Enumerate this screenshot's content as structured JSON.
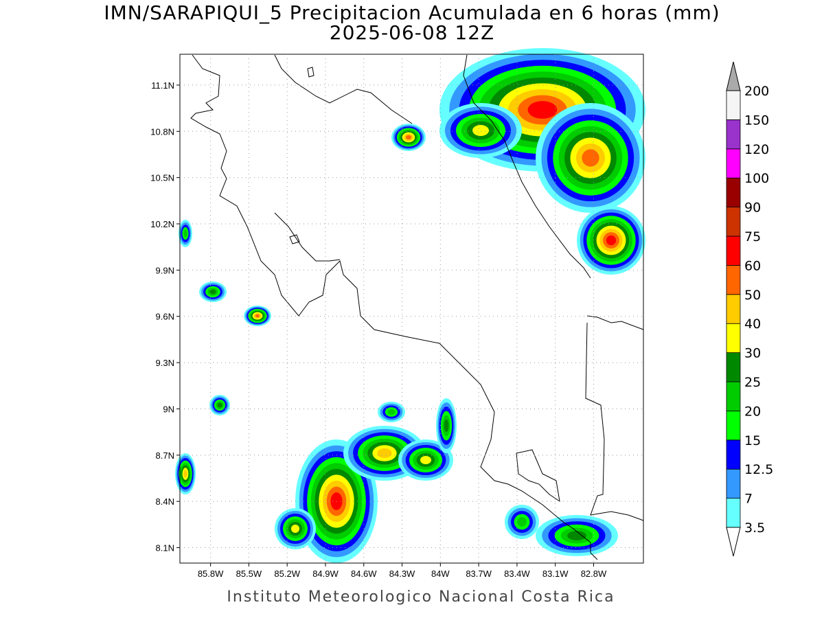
{
  "title": [
    "IMN/SARAPIQUI_5 Precipitacion Acumulada en 6 horas (mm)",
    "2025-06-08 12Z"
  ],
  "map": {
    "xlim": [
      -86.04,
      -82.41
    ],
    "ylim": [
      8.0,
      11.3
    ],
    "grid": true,
    "xticks": [
      {
        "value": -85.8,
        "label": "85.8W"
      },
      {
        "value": -85.5,
        "label": "85.5W"
      },
      {
        "value": -85.2,
        "label": "85.2W"
      },
      {
        "value": -84.9,
        "label": "84.9W"
      },
      {
        "value": -84.6,
        "label": "84.6W"
      },
      {
        "value": -84.3,
        "label": "84.3W"
      },
      {
        "value": -84.0,
        "label": "84W"
      },
      {
        "value": -83.7,
        "label": "83.7W"
      },
      {
        "value": -83.4,
        "label": "83.4W"
      },
      {
        "value": -83.1,
        "label": "83.1W"
      },
      {
        "value": -82.8,
        "label": "82.8W"
      }
    ],
    "yticks": [
      {
        "value": 8.1,
        "label": "8.1N"
      },
      {
        "value": 8.4,
        "label": "8.4N"
      },
      {
        "value": 8.7,
        "label": "8.7N"
      },
      {
        "value": 9.0,
        "label": "9N"
      },
      {
        "value": 9.3,
        "label": "9.3N"
      },
      {
        "value": 9.6,
        "label": "9.6N"
      },
      {
        "value": 9.9,
        "label": "9.9N"
      },
      {
        "value": 10.2,
        "label": "10.2N"
      },
      {
        "value": 10.5,
        "label": "10.5N"
      },
      {
        "value": 10.8,
        "label": "10.8N"
      },
      {
        "value": 11.1,
        "label": "11.1N"
      }
    ]
  },
  "colorbar": {
    "levels": [
      3.5,
      7,
      12.5,
      15,
      20,
      25,
      30,
      40,
      50,
      60,
      75,
      90,
      100,
      120,
      150,
      200
    ],
    "colors": [
      "#66ffff",
      "#3399ff",
      "#0000ff",
      "#00ff00",
      "#00cc00",
      "#008800",
      "#ffff00",
      "#ffcc00",
      "#ff6600",
      "#ff0000",
      "#cc3300",
      "#990000",
      "#ff00ff",
      "#9933cc",
      "#f5f5f5"
    ],
    "over_color": "#aaaaaa",
    "under_color": "#ffffff"
  },
  "footer": "Instituto Meteorologico Nacional Costa Rica"
}
